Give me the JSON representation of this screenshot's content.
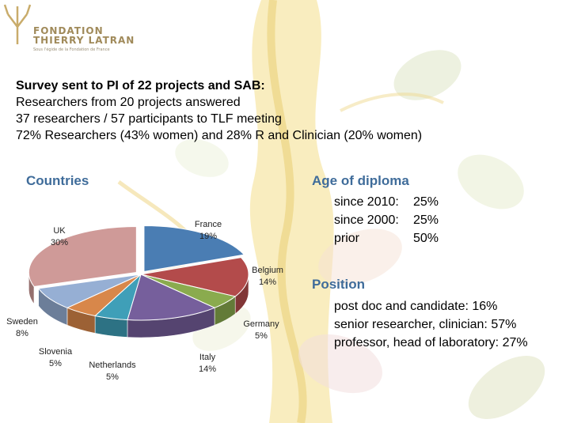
{
  "logo": {
    "line1": "FONDATION",
    "line2": "THIERRY LATRAN",
    "line3": "Sous l'égide de la Fondation de France"
  },
  "survey": {
    "heading": "Survey sent to PI of 22 projects and SAB:",
    "lines": [
      "Researchers from 20 projects answered",
      "37 researchers / 57 participants to TLF meeting",
      "72% Researchers (43% women) and 28% R and Clinician (20% women)"
    ]
  },
  "age": {
    "title": "Age of diploma",
    "rows": [
      {
        "label": "since 2010:",
        "value": "25%"
      },
      {
        "label": "since 2000:",
        "value": "25%"
      },
      {
        "label": "prior",
        "value": "50%"
      }
    ]
  },
  "position": {
    "title": "Position",
    "rows": [
      "post doc and candidate: 16%",
      "senior researcher, clinician: 57%",
      "professor, head of laboratory: 27%"
    ]
  },
  "chart_data": {
    "type": "pie",
    "title": "Countries",
    "categories": [
      "France",
      "Belgium",
      "Germany",
      "Italy",
      "Netherlands",
      "Slovenia",
      "Sweden",
      "UK"
    ],
    "values": [
      19,
      14,
      5,
      14,
      5,
      5,
      8,
      30
    ],
    "labels": [
      "19%",
      "14%",
      "5%",
      "14%",
      "5%",
      "5%",
      "8%",
      "30%"
    ],
    "colors": [
      "#4a7db3",
      "#b34b4b",
      "#8aab4e",
      "#765f9c",
      "#3f9fb8",
      "#d8874a",
      "#96afd4",
      "#cf9a98"
    ],
    "legend": "none"
  }
}
